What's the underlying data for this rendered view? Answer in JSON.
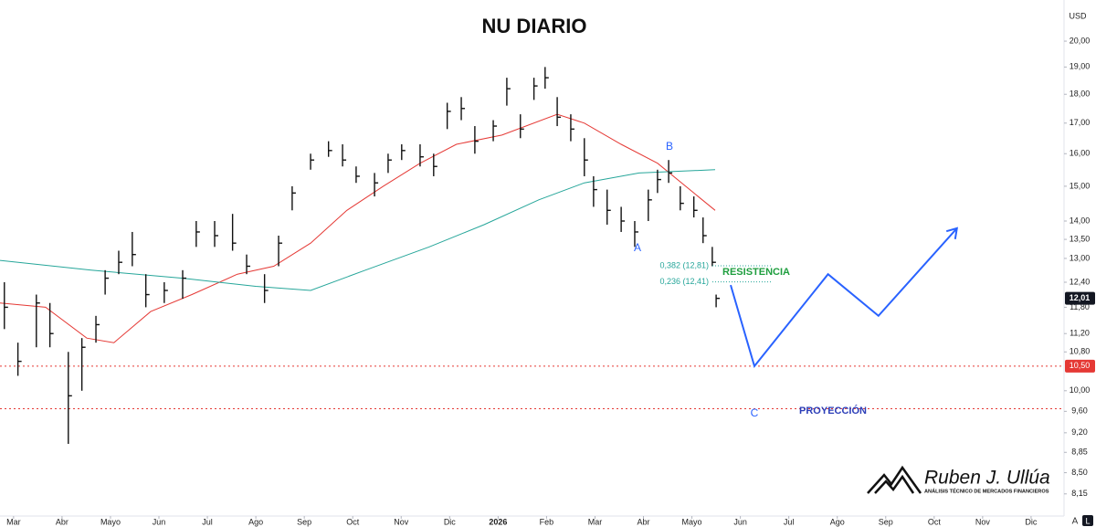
{
  "chart_data": {
    "type": "ohlc",
    "title": "NU DIARIO",
    "currency": "USD",
    "log_scale": true,
    "bar_color": "#111111",
    "x": [
      -0.19,
      0.09,
      0.47,
      0.75,
      1.13,
      1.41,
      1.7,
      1.89,
      2.17,
      2.45,
      2.73,
      3.11,
      3.49,
      3.77,
      4.15,
      4.52,
      4.81,
      5.18,
      5.47,
      5.75,
      6.13,
      6.5,
      6.79,
      7.07,
      7.45,
      7.73,
      8.01,
      8.39,
      8.67,
      8.95,
      9.24,
      9.52,
      9.9,
      10.18,
      10.46,
      10.74,
      10.97,
      11.22,
      11.5,
      11.78,
      11.97,
      12.25,
      12.54,
      12.82,
      13.1,
      13.29,
      13.52,
      13.76,
      14.04,
      14.23,
      14.42,
      14.5
    ],
    "high": [
      12.4,
      11.0,
      12.1,
      11.9,
      10.8,
      11.1,
      11.6,
      12.7,
      13.2,
      13.7,
      12.6,
      12.4,
      12.7,
      14.0,
      14.0,
      14.2,
      13.1,
      12.6,
      13.6,
      15.0,
      16.0,
      16.4,
      16.3,
      15.6,
      15.4,
      16.0,
      16.3,
      16.3,
      16.0,
      17.7,
      17.9,
      16.9,
      17.1,
      18.6,
      17.3,
      18.6,
      19.0,
      17.9,
      17.3,
      16.5,
      15.3,
      14.9,
      14.4,
      14.0,
      14.9,
      15.5,
      15.8,
      15.0,
      14.7,
      14.1,
      13.3,
      12.1
    ],
    "low": [
      11.3,
      10.3,
      10.9,
      10.9,
      9.0,
      10.0,
      11.0,
      12.1,
      12.6,
      12.8,
      11.8,
      11.9,
      12.0,
      13.3,
      13.3,
      13.2,
      12.6,
      11.9,
      12.8,
      14.3,
      15.5,
      15.9,
      15.6,
      15.1,
      14.7,
      15.4,
      15.8,
      15.6,
      15.3,
      16.8,
      17.1,
      16.0,
      16.4,
      17.6,
      16.5,
      17.8,
      18.2,
      16.9,
      16.4,
      15.3,
      14.4,
      13.9,
      13.7,
      13.3,
      14.0,
      14.8,
      15.1,
      14.3,
      14.1,
      13.4,
      12.8,
      11.8
    ],
    "close": [
      11.8,
      10.6,
      11.9,
      11.2,
      9.9,
      10.9,
      11.4,
      12.5,
      12.9,
      13.1,
      12.1,
      12.2,
      12.5,
      13.7,
      13.6,
      13.4,
      12.8,
      12.2,
      13.4,
      14.8,
      15.8,
      16.1,
      15.8,
      15.3,
      15.1,
      15.8,
      16.1,
      15.9,
      15.6,
      17.4,
      17.5,
      16.4,
      16.9,
      18.2,
      16.8,
      18.3,
      18.6,
      17.2,
      16.8,
      15.8,
      14.9,
      14.3,
      14.0,
      13.7,
      14.6,
      15.2,
      15.4,
      14.5,
      14.3,
      13.6,
      12.9,
      12.01
    ],
    "moving_averages": [
      {
        "color": "#e53935",
        "x": [
          -0.28,
          0.66,
          1.51,
          2.07,
          2.83,
          3.68,
          4.62,
          5.37,
          6.13,
          6.88,
          7.63,
          8.39,
          9.14,
          10.08,
          11.22,
          11.78,
          12.54,
          13.29,
          14.04,
          14.48
        ],
        "values": [
          11.9,
          11.8,
          11.1,
          11.0,
          11.7,
          12.1,
          12.6,
          12.8,
          13.4,
          14.3,
          15.0,
          15.7,
          16.3,
          16.6,
          17.3,
          17.0,
          16.3,
          15.7,
          14.8,
          14.3
        ]
      },
      {
        "color": "#26a69a",
        "x": [
          -0.28,
          1.6,
          3.49,
          5.0,
          6.13,
          7.26,
          8.58,
          9.71,
          10.84,
          11.78,
          12.91,
          14.48
        ],
        "values": [
          12.95,
          12.7,
          12.5,
          12.3,
          12.2,
          12.7,
          13.3,
          13.9,
          14.6,
          15.1,
          15.4,
          15.5
        ]
      }
    ],
    "projection": {
      "color": "#2962ff",
      "x": [
        14.8,
        15.29,
        16.81,
        17.85,
        19.47
      ],
      "values": [
        12.33,
        10.5,
        12.6,
        11.6,
        13.8
      ]
    },
    "levels": [
      {
        "value": 10.5,
        "label": "10,50",
        "color": "#e53935"
      },
      {
        "value": 9.65,
        "color": "#e53935"
      }
    ],
    "last_price": {
      "value": 12.01,
      "label": "12,01"
    },
    "fibonacci": [
      {
        "value": 12.81,
        "label": "0,382 (12,81)"
      },
      {
        "value": 12.41,
        "label": "0,236 (12,41)"
      }
    ],
    "fib_color": "#26a69a",
    "annotations": [
      {
        "text": "A",
        "color": "#2962ff"
      },
      {
        "text": "B",
        "color": "#2962ff"
      },
      {
        "text": "C",
        "color": "#2962ff"
      },
      {
        "text": "RESISTENCIA",
        "color": "#1e9e3e"
      },
      {
        "text": "PROYECCIÓN",
        "color": "#2c3eb8"
      }
    ],
    "ylim": [
      7.8,
      21.7
    ],
    "yticks": [
      {
        "value": 20,
        "label": "20,00"
      },
      {
        "value": 19,
        "label": "19,00"
      },
      {
        "value": 18,
        "label": "18,00"
      },
      {
        "value": 17,
        "label": "17,00"
      },
      {
        "value": 16,
        "label": "16,00"
      },
      {
        "value": 15,
        "label": "15,00"
      },
      {
        "value": 14,
        "label": "14,00"
      },
      {
        "value": 13.5,
        "label": "13,50"
      },
      {
        "value": 13,
        "label": "13,00"
      },
      {
        "value": 12.4,
        "label": "12,40"
      },
      {
        "value": 11.8,
        "label": "11,80"
      },
      {
        "value": 11.2,
        "label": "11,20"
      },
      {
        "value": 10.8,
        "label": "10,80"
      },
      {
        "value": 10,
        "label": "10,00"
      },
      {
        "value": 9.6,
        "label": "9,60"
      },
      {
        "value": 9.2,
        "label": "9,20"
      },
      {
        "value": 8.85,
        "label": "8,85"
      },
      {
        "value": 8.5,
        "label": "8,50"
      },
      {
        "value": 8.15,
        "label": "8,15"
      }
    ],
    "xlim": [
      -0.28,
      21.68
    ],
    "xticks": [
      {
        "value": 0,
        "label": "Mar"
      },
      {
        "value": 1,
        "label": "Abr"
      },
      {
        "value": 2,
        "label": "Mayo"
      },
      {
        "value": 3,
        "label": "Jun"
      },
      {
        "value": 4,
        "label": "Jul"
      },
      {
        "value": 5,
        "label": "Ago"
      },
      {
        "value": 6,
        "label": "Sep"
      },
      {
        "value": 7,
        "label": "Oct"
      },
      {
        "value": 8,
        "label": "Nov"
      },
      {
        "value": 9,
        "label": "Dic"
      },
      {
        "value": 10,
        "label": "2026"
      },
      {
        "value": 11,
        "label": "Feb"
      },
      {
        "value": 12,
        "label": "Mar"
      },
      {
        "value": 13,
        "label": "Abr"
      },
      {
        "value": 14,
        "label": "Mayo"
      },
      {
        "value": 15,
        "label": "Jun"
      },
      {
        "value": 16,
        "label": "Jul"
      },
      {
        "value": 17,
        "label": "Ago"
      },
      {
        "value": 18,
        "label": "Sep"
      },
      {
        "value": 19,
        "label": "Oct"
      },
      {
        "value": 20,
        "label": "Nov"
      },
      {
        "value": 21,
        "label": "Dic"
      }
    ]
  },
  "branding": {
    "name": "Ruben J. Ullúa",
    "tagline": "ANÁLISIS TÉCNICO DE MERCADOS FINANCIEROS"
  },
  "controls": {
    "auto": "A",
    "log": "L"
  }
}
